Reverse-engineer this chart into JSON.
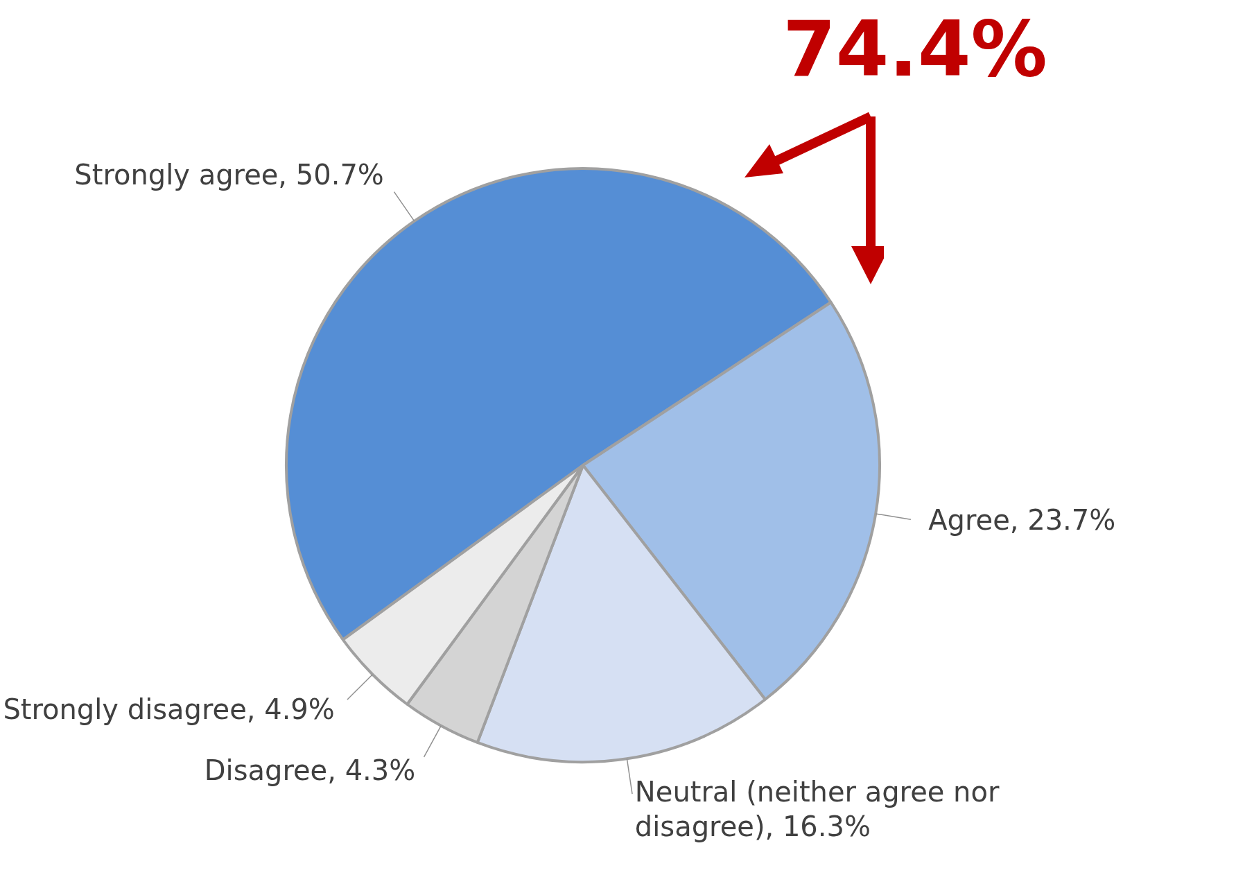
{
  "chart_data": {
    "type": "pie",
    "categories": [
      "Strongly agree",
      "Agree",
      "Neutral (neither agree nor disagree)",
      "Disagree",
      "Strongly disagree"
    ],
    "values": [
      50.7,
      23.7,
      16.3,
      4.3,
      4.9
    ],
    "value_labels": [
      "50.7%",
      "23.7%",
      "16.3%",
      "4.3%",
      "4.9%"
    ],
    "colors": [
      "#558ed5",
      "#a0bfe8",
      "#d6e0f3",
      "#d4d4d4",
      "#ececec"
    ],
    "annotations": [
      "74.4%"
    ],
    "legend": false
  }
}
